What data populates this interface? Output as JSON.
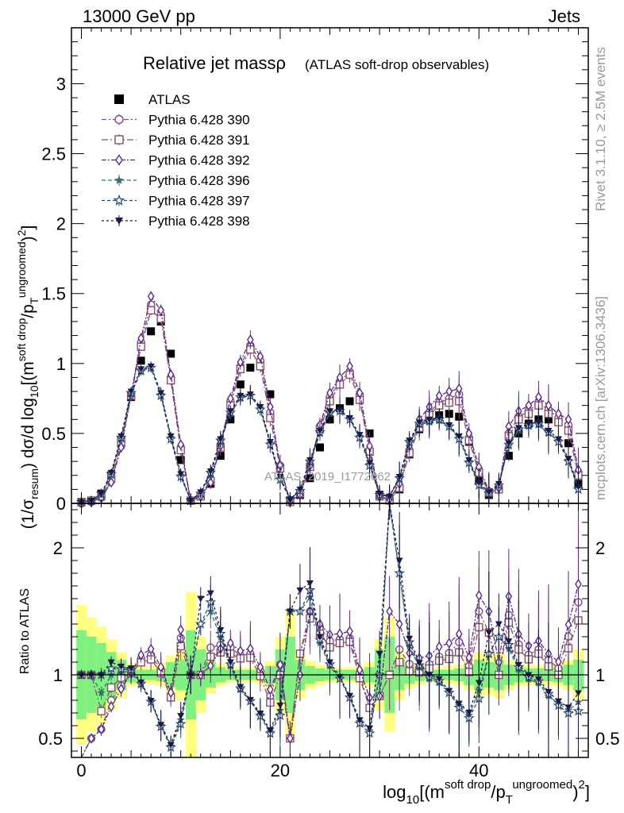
{
  "header": {
    "energy_label": "13000 GeV pp",
    "category_label": "Jets"
  },
  "side_text": {
    "rivet": "Rivet 3.1.10, ≥ 2.5M events",
    "mcplots": "mcplots.cern.ch [arXiv:1306.3436]"
  },
  "chart_data": {
    "type": "scatter",
    "title": "Relative jet massρ",
    "subtitle": "(ATLAS soft-drop observables)",
    "watermark": "ATLAS_2019_I1772062",
    "ylabel": "(1/σresum) dσ/d log10[(m^soft drop/pT^ungroomed)^2]",
    "ratio_ylabel": "Ratio to ATLAS",
    "xlabel": "log10[(m^soft drop/pT^ungroomed)^2]",
    "xlim": [
      -1,
      51
    ],
    "ylim": [
      0,
      3.4
    ],
    "ratio_ylim": [
      0.35,
      2.35
    ],
    "x_ticks": [
      "0",
      "20",
      "40"
    ],
    "y_ticks": [
      "0",
      "0.5",
      "1",
      "1.5",
      "2",
      "2.5",
      "3"
    ],
    "ratio_y_ticks": [
      "0.5",
      "1",
      "2"
    ],
    "legend_position": "top-left",
    "colors": {
      "ATLAS": "#000000",
      "band_inner": "#80f080",
      "band_outer": "#ffff80"
    },
    "x": [
      0,
      1,
      2,
      3,
      4,
      5,
      6,
      7,
      8,
      9,
      10,
      11,
      12,
      13,
      14,
      15,
      16,
      17,
      18,
      19,
      20,
      21,
      22,
      23,
      24,
      25,
      26,
      27,
      28,
      29,
      30,
      31,
      32,
      33,
      34,
      35,
      36,
      37,
      38,
      39,
      40,
      41,
      42,
      43,
      44,
      45,
      46,
      47,
      48,
      49,
      50
    ],
    "series": [
      {
        "name": "ATLAS",
        "color": "#000000",
        "marker": "filled-square",
        "dash": "none",
        "values": [
          0.01,
          0.02,
          0.07,
          0.2,
          0.45,
          0.76,
          1.02,
          1.23,
          1.3,
          1.07,
          0.31,
          0.02,
          0.05,
          0.14,
          0.34,
          0.6,
          0.85,
          0.97,
          0.99,
          0.78,
          0.25,
          0.02,
          0.06,
          0.18,
          0.4,
          0.6,
          0.68,
          0.73,
          0.76,
          0.5,
          0.06,
          0.02,
          0.1,
          0.35,
          0.53,
          0.6,
          0.63,
          0.64,
          0.62,
          0.44,
          0.16,
          0.06,
          0.1,
          0.34,
          0.5,
          0.57,
          0.6,
          0.6,
          0.58,
          0.43,
          0.14
        ]
      },
      {
        "name": "Pythia 6.428 390",
        "color": "#7a4a8a",
        "marker": "open-circle",
        "dash": "6,3,2,3",
        "values": [
          0.0,
          0.01,
          0.04,
          0.16,
          0.41,
          0.77,
          1.15,
          1.42,
          1.35,
          0.9,
          0.4,
          0.02,
          0.05,
          0.17,
          0.42,
          0.73,
          0.98,
          1.13,
          1.02,
          0.65,
          0.27,
          0.01,
          0.07,
          0.27,
          0.55,
          0.76,
          0.87,
          0.94,
          0.77,
          0.37,
          0.05,
          0.02,
          0.12,
          0.38,
          0.56,
          0.65,
          0.72,
          0.75,
          0.78,
          0.47,
          0.24,
          0.08,
          0.1,
          0.5,
          0.62,
          0.66,
          0.72,
          0.67,
          0.61,
          0.56,
          0.22
        ]
      },
      {
        "name": "Pythia 6.428 391",
        "color": "#8a5060",
        "marker": "open-square",
        "dash": "8,3,2,3",
        "values": [
          0.01,
          0.02,
          0.05,
          0.18,
          0.44,
          0.77,
          1.12,
          1.38,
          1.32,
          0.88,
          0.38,
          0.02,
          0.05,
          0.16,
          0.4,
          0.7,
          0.96,
          1.1,
          0.98,
          0.61,
          0.25,
          0.01,
          0.07,
          0.26,
          0.53,
          0.73,
          0.85,
          0.92,
          0.74,
          0.37,
          0.05,
          0.02,
          0.11,
          0.36,
          0.54,
          0.63,
          0.7,
          0.72,
          0.73,
          0.45,
          0.22,
          0.08,
          0.1,
          0.48,
          0.6,
          0.64,
          0.7,
          0.64,
          0.58,
          0.52,
          0.2
        ]
      },
      {
        "name": "Pythia 6.428 392",
        "color": "#5a2a8a",
        "marker": "open-diamond",
        "dash": "6,2,2,2",
        "values": [
          0.0,
          0.01,
          0.04,
          0.15,
          0.4,
          0.77,
          1.18,
          1.48,
          1.38,
          0.92,
          0.42,
          0.02,
          0.05,
          0.15,
          0.41,
          0.75,
          1.01,
          1.17,
          1.05,
          0.69,
          0.27,
          0.01,
          0.06,
          0.27,
          0.56,
          0.79,
          0.9,
          0.98,
          0.79,
          0.41,
          0.05,
          0.03,
          0.14,
          0.41,
          0.6,
          0.69,
          0.77,
          0.8,
          0.82,
          0.5,
          0.26,
          0.09,
          0.11,
          0.55,
          0.66,
          0.7,
          0.76,
          0.7,
          0.64,
          0.6,
          0.24
        ]
      },
      {
        "name": "Pythia 6.428 396",
        "color": "#3a6a7a",
        "marker": "star",
        "dash": "5,3",
        "values": [
          0.01,
          0.02,
          0.06,
          0.2,
          0.46,
          0.78,
          0.94,
          0.97,
          0.78,
          0.47,
          0.2,
          0.02,
          0.07,
          0.21,
          0.44,
          0.64,
          0.75,
          0.77,
          0.68,
          0.43,
          0.18,
          0.03,
          0.09,
          0.29,
          0.5,
          0.64,
          0.66,
          0.6,
          0.48,
          0.28,
          0.06,
          0.05,
          0.18,
          0.43,
          0.56,
          0.58,
          0.59,
          0.55,
          0.47,
          0.3,
          0.14,
          0.07,
          0.13,
          0.41,
          0.52,
          0.55,
          0.56,
          0.5,
          0.45,
          0.31,
          0.11
        ]
      },
      {
        "name": "Pythia 6.428 397",
        "color": "#2a4a6a",
        "marker": "open-star",
        "dash": "4,3",
        "values": [
          0.01,
          0.02,
          0.07,
          0.21,
          0.47,
          0.79,
          0.95,
          0.97,
          0.77,
          0.46,
          0.19,
          0.02,
          0.07,
          0.22,
          0.45,
          0.65,
          0.76,
          0.77,
          0.67,
          0.42,
          0.17,
          0.03,
          0.09,
          0.3,
          0.51,
          0.65,
          0.66,
          0.6,
          0.47,
          0.27,
          0.06,
          0.05,
          0.18,
          0.44,
          0.57,
          0.59,
          0.6,
          0.55,
          0.46,
          0.29,
          0.13,
          0.07,
          0.13,
          0.42,
          0.53,
          0.56,
          0.57,
          0.51,
          0.44,
          0.3,
          0.1
        ]
      },
      {
        "name": "Pythia 6.428 398",
        "color": "#1a1a4a",
        "marker": "filled-triangle-down",
        "dash": "3,3",
        "values": [
          0.01,
          0.02,
          0.07,
          0.22,
          0.48,
          0.8,
          0.96,
          0.98,
          0.79,
          0.48,
          0.21,
          0.02,
          0.08,
          0.23,
          0.46,
          0.66,
          0.77,
          0.78,
          0.69,
          0.44,
          0.19,
          0.03,
          0.1,
          0.31,
          0.52,
          0.66,
          0.67,
          0.61,
          0.49,
          0.29,
          0.07,
          0.05,
          0.19,
          0.45,
          0.58,
          0.6,
          0.61,
          0.56,
          0.48,
          0.31,
          0.15,
          0.08,
          0.14,
          0.43,
          0.54,
          0.57,
          0.58,
          0.52,
          0.46,
          0.32,
          0.12
        ]
      }
    ],
    "atlas_uncertainty": {
      "inner": [
        0.35,
        0.3,
        0.25,
        0.18,
        0.12,
        0.06,
        0.04,
        0.04,
        0.05,
        0.1,
        0.12,
        0.35,
        0.2,
        0.1,
        0.06,
        0.04,
        0.04,
        0.04,
        0.04,
        0.07,
        0.2,
        0.3,
        0.12,
        0.07,
        0.05,
        0.04,
        0.04,
        0.04,
        0.04,
        0.06,
        0.2,
        0.3,
        0.12,
        0.07,
        0.05,
        0.04,
        0.04,
        0.04,
        0.05,
        0.08,
        0.12,
        0.1,
        0.12,
        0.08,
        0.06,
        0.05,
        0.05,
        0.05,
        0.06,
        0.08,
        0.12
      ],
      "outer": [
        0.55,
        0.45,
        0.38,
        0.28,
        0.18,
        0.09,
        0.06,
        0.07,
        0.09,
        0.15,
        0.2,
        0.65,
        0.3,
        0.15,
        0.09,
        0.06,
        0.06,
        0.06,
        0.07,
        0.11,
        0.3,
        0.5,
        0.18,
        0.11,
        0.08,
        0.06,
        0.06,
        0.06,
        0.07,
        0.1,
        0.28,
        0.45,
        0.2,
        0.11,
        0.08,
        0.06,
        0.06,
        0.07,
        0.08,
        0.12,
        0.18,
        0.16,
        0.18,
        0.12,
        0.09,
        0.08,
        0.08,
        0.08,
        0.09,
        0.12,
        0.2
      ]
    }
  }
}
